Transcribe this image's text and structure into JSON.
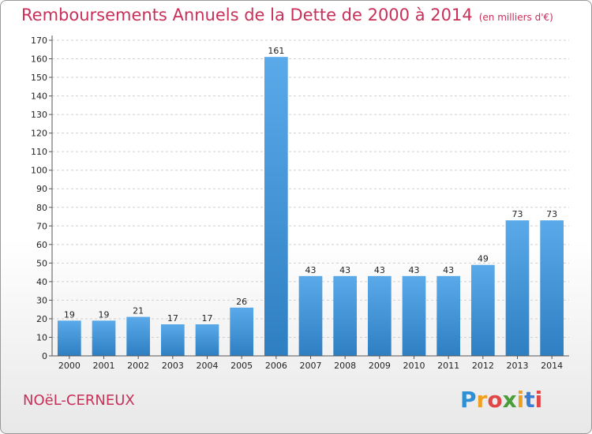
{
  "header": {
    "title": "Remboursements Annuels de la Dette de 2000 à 2014",
    "unit": "(en milliers d'€)"
  },
  "footer": {
    "commune": "NOëL-CERNEUX",
    "logo_letters": [
      "P",
      "r",
      "o",
      "x",
      "i",
      "t",
      "i"
    ],
    "logo_colors": [
      "#2e8fd4",
      "#f0a020",
      "#e04848",
      "#4a9e3a",
      "#f0a020",
      "#3a7ed4",
      "#e04848"
    ]
  },
  "colors": {
    "bar_top": "#5aaaea",
    "bar_bottom": "#2e7fc2",
    "title": "#c8305a"
  },
  "chart_data": {
    "type": "bar",
    "title": "Remboursements Annuels de la Dette de 2000 à 2014",
    "xlabel": "",
    "ylabel": "",
    "ylim": [
      0,
      170
    ],
    "yticks": [
      0,
      10,
      20,
      30,
      40,
      50,
      60,
      70,
      80,
      90,
      100,
      110,
      120,
      130,
      140,
      150,
      160,
      170
    ],
    "grid": true,
    "categories": [
      "2000",
      "2001",
      "2002",
      "2003",
      "2004",
      "2005",
      "2006",
      "2007",
      "2008",
      "2009",
      "2010",
      "2011",
      "2012",
      "2013",
      "2014"
    ],
    "values": [
      19,
      19,
      21,
      17,
      17,
      26,
      161,
      43,
      43,
      43,
      43,
      43,
      49,
      73,
      73
    ]
  }
}
